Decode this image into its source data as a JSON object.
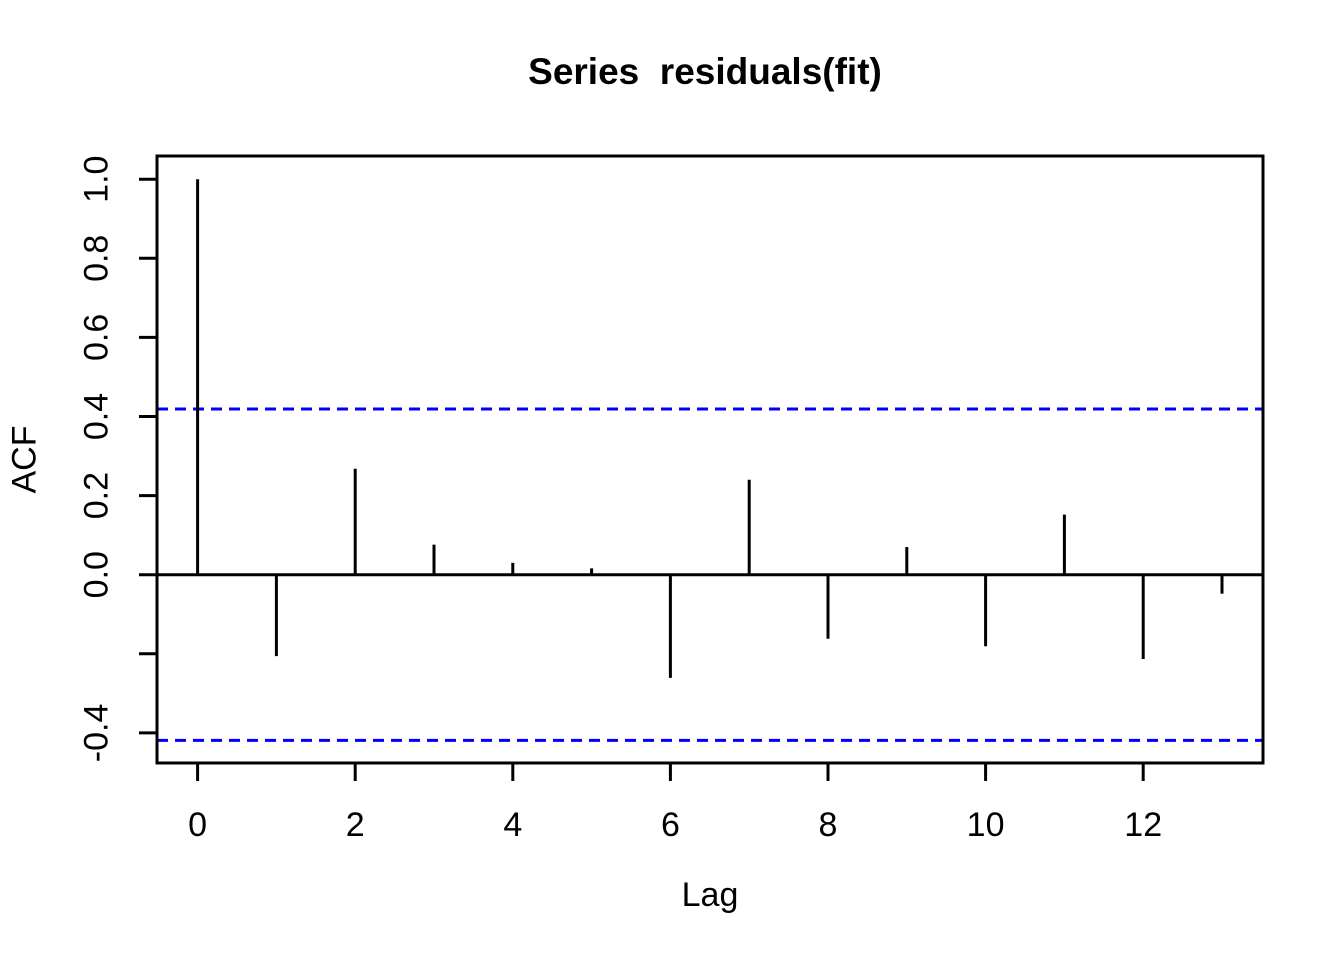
{
  "chart_data": {
    "type": "bar",
    "subtype": "acf-stick-plot",
    "title": "Series  residuals(fit)",
    "xlabel": "Lag",
    "ylabel": "ACF",
    "x": [
      0,
      1,
      2,
      3,
      4,
      5,
      6,
      7,
      8,
      9,
      10,
      11,
      12,
      13
    ],
    "values": [
      1.0,
      -0.206,
      0.268,
      0.076,
      0.03,
      0.016,
      -0.261,
      0.24,
      -0.162,
      0.07,
      -0.181,
      0.152,
      -0.213,
      -0.048
    ],
    "series_color": "#000000",
    "zero_line": 0.0,
    "confidence_bounds": {
      "upper": 0.419,
      "lower": -0.419,
      "color": "#0000FF",
      "style": "dashed"
    },
    "xlim": [
      -0.52,
      13.55
    ],
    "ylim": [
      -0.475,
      1.06
    ],
    "grid": false,
    "legend": null,
    "x_ticks": [
      {
        "value": 0,
        "label": "0"
      },
      {
        "value": 2,
        "label": "2"
      },
      {
        "value": 4,
        "label": "4"
      },
      {
        "value": 6,
        "label": "6"
      },
      {
        "value": 8,
        "label": "8"
      },
      {
        "value": 10,
        "label": "10"
      },
      {
        "value": 12,
        "label": "12"
      }
    ],
    "y_ticks": [
      {
        "value": -0.4,
        "label": "-0.4"
      },
      {
        "value": -0.2,
        "label": ""
      },
      {
        "value": 0.0,
        "label": "0.0"
      },
      {
        "value": 0.2,
        "label": "0.2"
      },
      {
        "value": 0.4,
        "label": "0.4"
      },
      {
        "value": 0.6,
        "label": "0.6"
      },
      {
        "value": 0.8,
        "label": "0.8"
      },
      {
        "value": 1.0,
        "label": "1.0"
      }
    ]
  }
}
